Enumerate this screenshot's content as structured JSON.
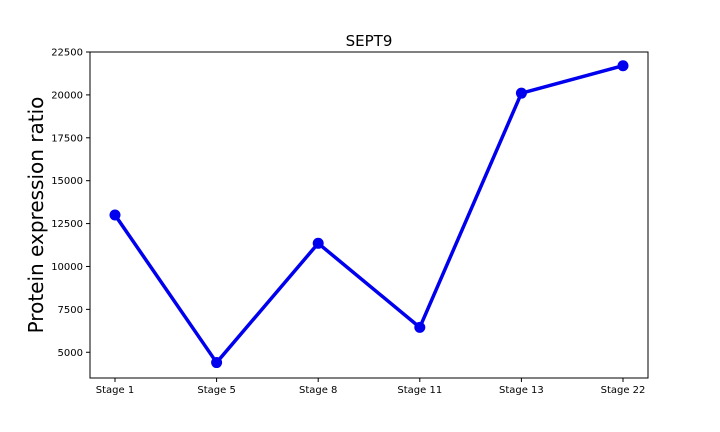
{
  "chart_data": {
    "type": "line",
    "title": "SEPT9",
    "xlabel": "",
    "ylabel": "Protein expression ratio",
    "categories": [
      "Stage 1",
      "Stage 5",
      "Stage 8",
      "Stage 11",
      "Stage 13",
      "Stage 22"
    ],
    "series": [
      {
        "values": [
          13000,
          4400,
          11350,
          6450,
          20100,
          21700
        ],
        "color": "#0000ee"
      }
    ],
    "ylim": [
      3500,
      22500
    ],
    "yticks": [
      5000,
      7500,
      10000,
      12500,
      15000,
      17500,
      20000,
      22500
    ],
    "ytick_labels": [
      "5000",
      "7500",
      "10000",
      "12500",
      "15000",
      "17500",
      "20000",
      "22500"
    ],
    "grid": false,
    "legend": "none"
  }
}
